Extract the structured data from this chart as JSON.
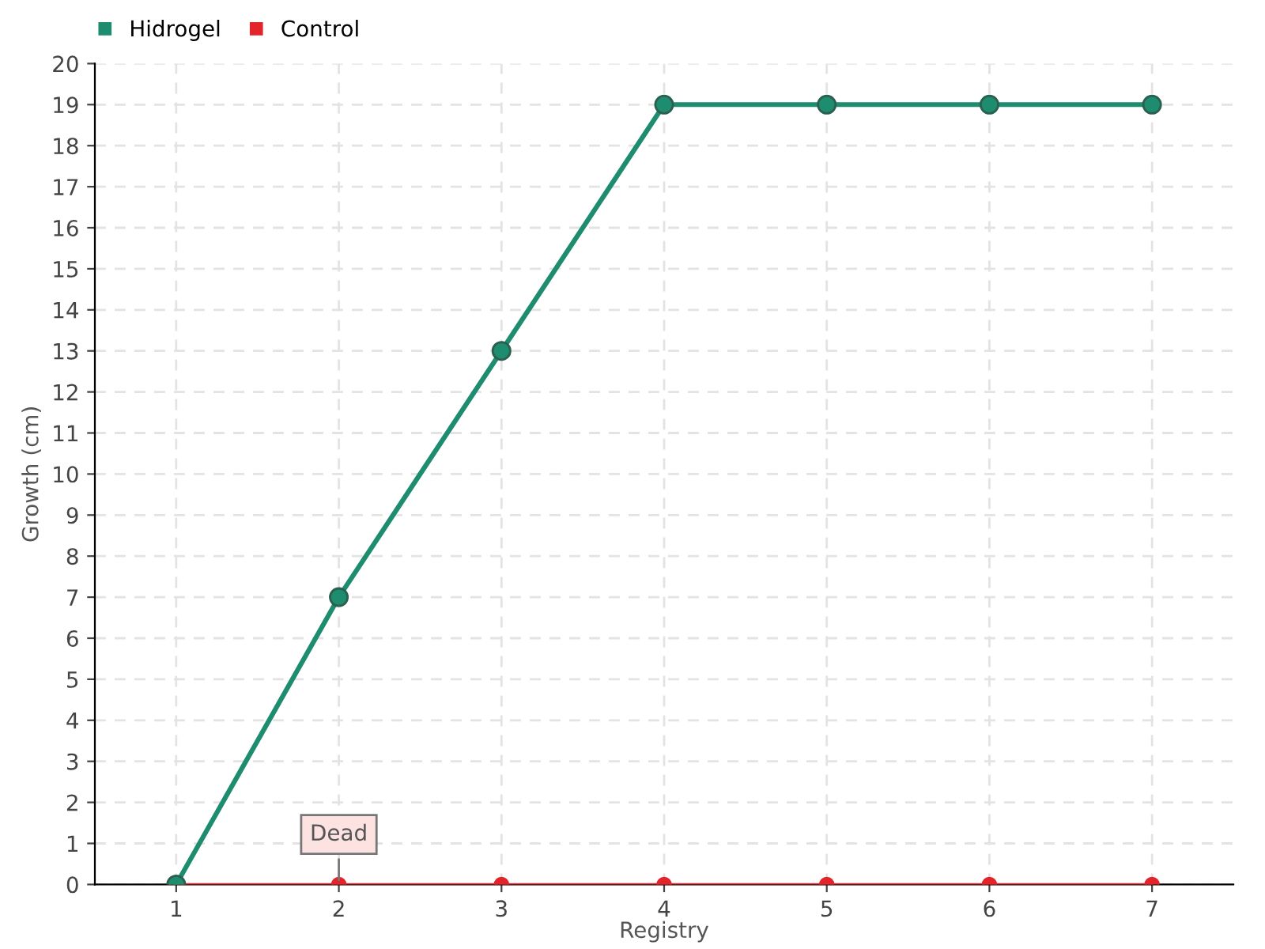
{
  "chart_data": {
    "type": "line",
    "xlabel": "Registry",
    "ylabel": "Growth (cm)",
    "categories": [
      "1",
      "2",
      "3",
      "4",
      "5",
      "6",
      "7"
    ],
    "series": [
      {
        "name": "Hidrogel",
        "color": "#1e8c6e",
        "values": [
          0,
          7,
          13,
          19,
          19,
          19,
          19
        ]
      },
      {
        "name": "Control",
        "color": "#e3242b",
        "values": [
          0,
          0,
          0,
          0,
          0,
          0,
          0
        ]
      }
    ],
    "ylim": [
      0,
      20
    ],
    "yticks": [
      0,
      1,
      2,
      3,
      4,
      5,
      6,
      7,
      8,
      9,
      10,
      11,
      12,
      13,
      14,
      15,
      16,
      17,
      18,
      19,
      20
    ],
    "grid": true,
    "legend": "top left",
    "marker": "circle",
    "line_style": "solid",
    "annotations": [
      {
        "text": "Dead",
        "x": "2",
        "y": 0
      }
    ]
  }
}
